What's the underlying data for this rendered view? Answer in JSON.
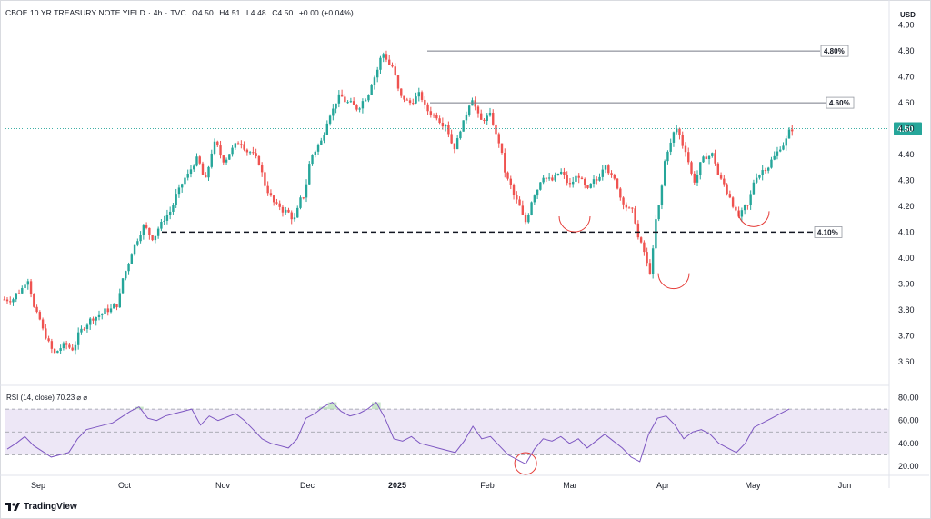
{
  "header": {
    "symbol": "CBOE 10 YR TREASURY NOTE YIELD",
    "interval": "4h",
    "source": "TVC",
    "open": "O4.50",
    "high": "H4.51",
    "low": "L4.48",
    "close": "C4.50",
    "change": "+0.00 (+0.04%)"
  },
  "currency": "USD",
  "rsi_label": "RSI (14, close)  70.23  ⌀  ⌀",
  "brand": "TradingView",
  "colors": {
    "up": "#26a69a",
    "down": "#ef5350",
    "rsi_line": "#7e57c2",
    "rsi_band": "#ede7f6",
    "current_price": "#26a69a",
    "support_line": "#131722",
    "marker": "#e53935"
  },
  "chart_data": [
    {
      "type": "candlestick",
      "title": "CBOE 10 YR TREASURY NOTE YIELD",
      "y_axis": {
        "ticks": [
          "3.60",
          "3.70",
          "3.80",
          "3.90",
          "4.00",
          "4.10",
          "4.20",
          "4.30",
          "4.40",
          "4.50",
          "4.60",
          "4.70",
          "4.80",
          "4.90"
        ],
        "range": [
          3.55,
          4.92
        ]
      },
      "x_axis": {
        "ticks": [
          "Sep",
          "Oct",
          "Nov",
          "Dec",
          "2025",
          "Feb",
          "Mar",
          "Apr",
          "May",
          "Jun"
        ]
      },
      "price_path": [
        [
          "Sep",
          3.84
        ],
        [
          "Sep",
          3.87
        ],
        [
          "Sep",
          3.92
        ],
        [
          "Sep",
          3.78
        ],
        [
          "Sep",
          3.7
        ],
        [
          "Sep",
          3.63
        ],
        [
          "Sep",
          3.66
        ],
        [
          "Sep",
          3.65
        ],
        [
          "Oct",
          3.72
        ],
        [
          "Oct",
          3.76
        ],
        [
          "Oct",
          3.78
        ],
        [
          "Oct",
          3.8
        ],
        [
          "Oct",
          3.82
        ],
        [
          "Oct",
          3.95
        ],
        [
          "Oct",
          4.05
        ],
        [
          "Oct",
          4.12
        ],
        [
          "Oct",
          4.08
        ],
        [
          "Oct",
          4.13
        ],
        [
          "Oct",
          4.18
        ],
        [
          "Oct",
          4.26
        ],
        [
          "Oct",
          4.32
        ],
        [
          "Oct",
          4.38
        ],
        [
          "Nov",
          4.3
        ],
        [
          "Nov",
          4.44
        ],
        [
          "Nov",
          4.38
        ],
        [
          "Nov",
          4.42
        ],
        [
          "Nov",
          4.45
        ],
        [
          "Nov",
          4.41
        ],
        [
          "Nov",
          4.37
        ],
        [
          "Nov",
          4.26
        ],
        [
          "Nov",
          4.2
        ],
        [
          "Dec",
          4.18
        ],
        [
          "Dec",
          4.15
        ],
        [
          "Dec",
          4.24
        ],
        [
          "Dec",
          4.4
        ],
        [
          "Dec",
          4.45
        ],
        [
          "Dec",
          4.56
        ],
        [
          "Dec",
          4.62
        ],
        [
          "2025",
          4.6
        ],
        [
          "2025",
          4.58
        ],
        [
          "2025",
          4.62
        ],
        [
          "2025",
          4.7
        ],
        [
          "2025",
          4.79
        ],
        [
          "2025",
          4.74
        ],
        [
          "2025",
          4.62
        ],
        [
          "2025",
          4.6
        ],
        [
          "2025",
          4.63
        ],
        [
          "2025",
          4.57
        ],
        [
          "2025",
          4.55
        ],
        [
          "Feb",
          4.52
        ],
        [
          "Feb",
          4.43
        ],
        [
          "Feb",
          4.52
        ],
        [
          "Feb",
          4.62
        ],
        [
          "Feb",
          4.53
        ],
        [
          "Feb",
          4.55
        ],
        [
          "Feb",
          4.45
        ],
        [
          "Mar",
          4.3
        ],
        [
          "Mar",
          4.22
        ],
        [
          "Mar",
          4.14
        ],
        [
          "Mar",
          4.25
        ],
        [
          "Mar",
          4.32
        ],
        [
          "Mar",
          4.3
        ],
        [
          "Mar",
          4.33
        ],
        [
          "Mar",
          4.28
        ],
        [
          "Mar",
          4.32
        ],
        [
          "Mar",
          4.26
        ],
        [
          "Apr",
          4.3
        ],
        [
          "Apr",
          4.37
        ],
        [
          "Apr",
          4.3
        ],
        [
          "Apr",
          4.22
        ],
        [
          "Apr",
          4.18
        ],
        [
          "Apr",
          4.05
        ],
        [
          "Apr",
          3.95
        ],
        [
          "Apr",
          4.2
        ],
        [
          "Apr",
          4.42
        ],
        [
          "Apr",
          4.5
        ],
        [
          "Apr",
          4.42
        ],
        [
          "May",
          4.3
        ],
        [
          "May",
          4.38
        ],
        [
          "May",
          4.4
        ],
        [
          "May",
          4.3
        ],
        [
          "May",
          4.24
        ],
        [
          "May",
          4.16
        ],
        [
          "May",
          4.2
        ],
        [
          "May",
          4.32
        ],
        [
          "May",
          4.35
        ],
        [
          "May",
          4.39
        ],
        [
          "May",
          4.44
        ],
        [
          "May",
          4.5
        ]
      ],
      "levels": [
        {
          "value": 4.8,
          "label": "4.80%",
          "style": "solid"
        },
        {
          "value": 4.6,
          "label": "4.60%",
          "style": "solid"
        },
        {
          "value": 4.1,
          "label": "4.10%",
          "style": "dashed"
        }
      ],
      "current_price": {
        "value": 4.5,
        "label": "4.50"
      },
      "markers": [
        {
          "type": "arc",
          "near": "Mar",
          "value": 4.14
        },
        {
          "type": "arc",
          "near": "Apr",
          "value": 3.92
        },
        {
          "type": "arc",
          "near": "May",
          "value": 4.16
        }
      ]
    },
    {
      "type": "line",
      "title": "RSI (14, close)",
      "value": 70.23,
      "y_axis": {
        "ticks": [
          "20.00",
          "40.00",
          "60.00",
          "80.00"
        ],
        "range": [
          16,
          86
        ],
        "band": [
          30,
          70
        ]
      },
      "values": [
        35,
        40,
        46,
        38,
        33,
        28,
        30,
        32,
        44,
        52,
        54,
        56,
        58,
        63,
        68,
        72,
        62,
        60,
        64,
        66,
        68,
        70,
        56,
        64,
        60,
        63,
        66,
        60,
        52,
        44,
        40,
        38,
        36,
        44,
        62,
        66,
        72,
        76,
        68,
        64,
        66,
        70,
        76,
        62,
        44,
        42,
        46,
        40,
        38,
        36,
        34,
        32,
        42,
        55,
        44,
        46,
        38,
        30,
        26,
        22,
        35,
        44,
        42,
        46,
        40,
        44,
        36,
        42,
        48,
        42,
        36,
        28,
        24,
        48,
        62,
        64,
        56,
        44,
        50,
        52,
        48,
        40,
        36,
        32,
        40,
        54,
        58,
        62,
        66,
        70
      ],
      "markers": [
        {
          "type": "circle",
          "near": "Mar",
          "value": 24
        }
      ]
    }
  ]
}
